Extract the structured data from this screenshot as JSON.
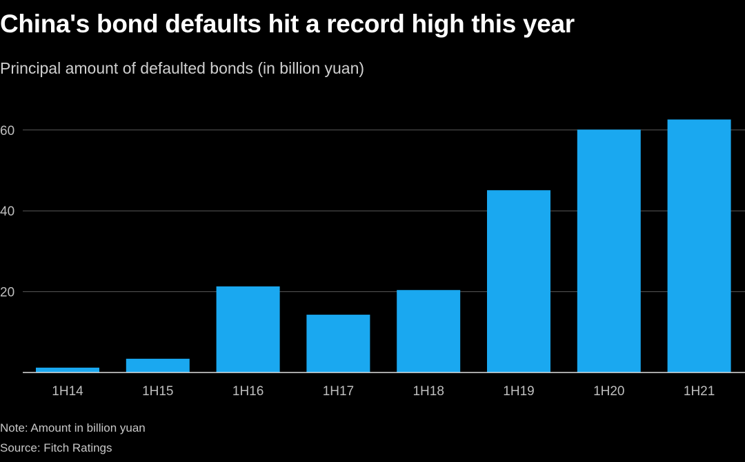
{
  "title": "China's bond defaults hit a record high this year",
  "subtitle": "Principal amount of defaulted bonds (in billion yuan)",
  "note": "Note: Amount in billion yuan",
  "source": "Source: Fitch Ratings",
  "colors": {
    "background": "#000000",
    "bar": "#1aa8f0",
    "grid": "#5a5a5a",
    "axis": "#e0e0e0"
  },
  "chart_data": {
    "type": "bar",
    "categories": [
      "1H14",
      "1H15",
      "1H16",
      "1H17",
      "1H18",
      "1H19",
      "1H20",
      "1H21"
    ],
    "values": [
      1.2,
      3.4,
      21.3,
      14.3,
      20.4,
      45.1,
      60.1,
      62.6
    ],
    "yticks": [
      20,
      40,
      60
    ],
    "ylim": [
      0,
      66
    ],
    "grid": true
  }
}
